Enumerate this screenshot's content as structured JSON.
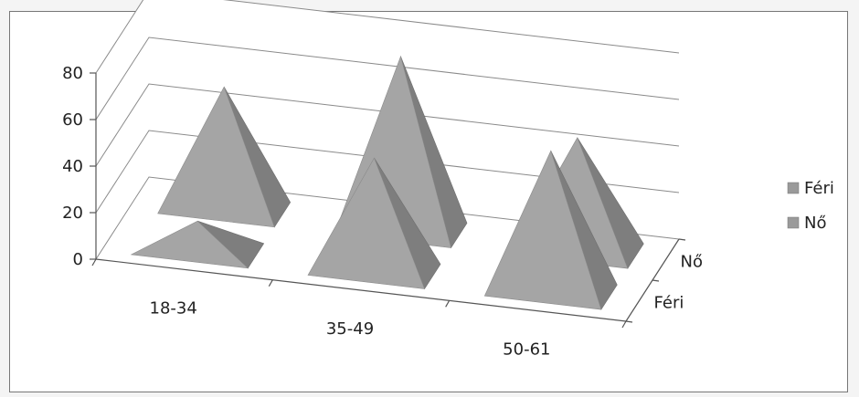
{
  "chart_data": {
    "type": "bar",
    "style": "3d-pyramid",
    "categories": [
      "18-34",
      "35-49",
      "50-61"
    ],
    "series": [
      {
        "name": "Féri",
        "values": [
          12,
          48,
          60
        ]
      },
      {
        "name": "Nő",
        "values": [
          52,
          74,
          48
        ]
      }
    ],
    "yticks": [
      "0",
      "20",
      "40",
      "60",
      "80"
    ],
    "ylim": [
      0,
      80
    ],
    "grid": true,
    "legend_position": "right",
    "colors": {
      "pyramid": "#9a9a9a",
      "grid": "#8a8a8a",
      "axis": "#555555"
    }
  }
}
